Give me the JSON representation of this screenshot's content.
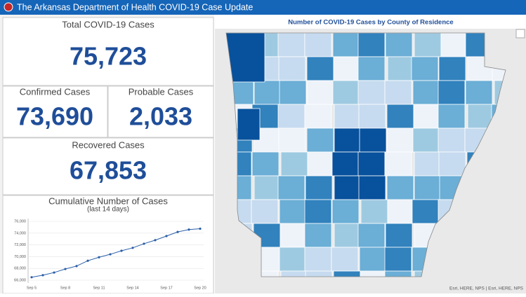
{
  "header": {
    "title": "The Arkansas Department of Health COVID-19 Case Update"
  },
  "total": {
    "label": "Total COVID-19 Cases",
    "value": "75,723"
  },
  "confirmed": {
    "label": "Confirmed Cases",
    "value": "73,690"
  },
  "probable": {
    "label": "Probable Cases",
    "value": "2,033"
  },
  "recovered": {
    "label": "Recovered Cases",
    "value": "67,853"
  },
  "map": {
    "title": "Number of COVID-19 Cases by County of Residence",
    "attribution": "Esri, HERE, NPS | Esri, HERE, NPS"
  },
  "chart_data": {
    "type": "line",
    "title": "Cumulative Number of Cases",
    "subtitle": "(last 14 days)",
    "categories": [
      "Sep 5",
      null,
      null,
      "Sep 8",
      null,
      null,
      "Sep 11",
      null,
      null,
      "Sep 14",
      null,
      null,
      "Sep 17",
      null,
      null,
      "Sep 20"
    ],
    "values": [
      66500,
      66850,
      67300,
      67900,
      68400,
      69300,
      69900,
      70400,
      71000,
      71500,
      72200,
      72800,
      73500,
      74200,
      74600,
      74750
    ],
    "color": "#2a5ea8",
    "ylim": [
      66000,
      76000
    ],
    "yticks": [
      {
        "value": 66000,
        "label": "66,000"
      },
      {
        "value": 68000,
        "label": "68,000"
      },
      {
        "value": 70000,
        "label": "70,000"
      },
      {
        "value": 72000,
        "label": "72,000"
      },
      {
        "value": 74000,
        "label": "74,000"
      },
      {
        "value": 76000,
        "label": "76,000"
      }
    ],
    "grid": true
  }
}
